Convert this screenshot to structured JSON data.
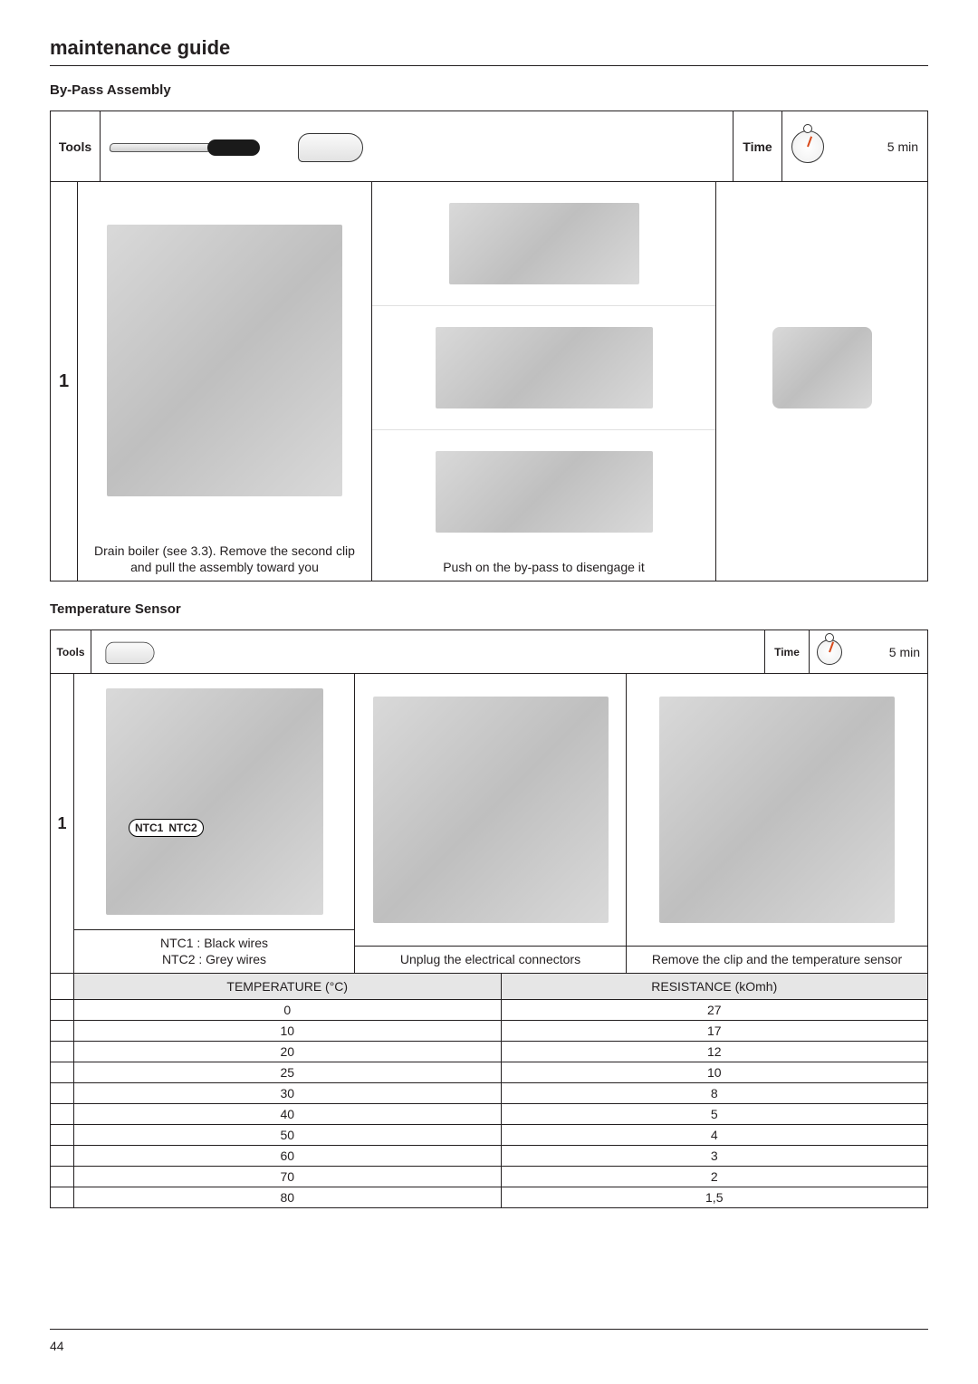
{
  "page": {
    "title": "maintenance guide",
    "number": "44"
  },
  "bypass": {
    "subtitle": "By-Pass Assembly",
    "tools_label": "Tools",
    "time_label": "Time",
    "time_value": "5 min",
    "step_number": "1",
    "caption_col1": "Drain boiler (see 3.3). Remove the second clip and pull the assembly toward you",
    "caption_col2": "Push on the by-pass to disengage it"
  },
  "tempsensor": {
    "subtitle": "Temperature Sensor",
    "tools_label": "Tools",
    "time_label": "Time",
    "time_value": "5 min",
    "step_number": "1",
    "ntc1_label": "NTC1",
    "ntc2_label": "NTC2",
    "caption_col1_line1": "NTC1 : Black wires",
    "caption_col1_line2": "NTC2 : Grey wires",
    "caption_col2": "Unplug the electrical connectors",
    "caption_col3": "Remove the clip and the temperature sensor",
    "table": {
      "head_temp": "TEMPERATURE (°C)",
      "head_res": "RESISTANCE (kOmh)",
      "rows": [
        {
          "t": "0",
          "r": "27"
        },
        {
          "t": "10",
          "r": "17"
        },
        {
          "t": "20",
          "r": "12"
        },
        {
          "t": "25",
          "r": "10"
        },
        {
          "t": "30",
          "r": "8"
        },
        {
          "t": "40",
          "r": "5"
        },
        {
          "t": "50",
          "r": "4"
        },
        {
          "t": "60",
          "r": "3"
        },
        {
          "t": "70",
          "r": "2"
        },
        {
          "t": "80",
          "r": "1,5"
        }
      ]
    }
  },
  "style": {
    "border_color": "#231f20",
    "table_head_bg": "#e6e6e6",
    "stopwatch_needle": "#d84a1b",
    "body_font_size_pt": 10,
    "title_font_size_pt": 16
  }
}
